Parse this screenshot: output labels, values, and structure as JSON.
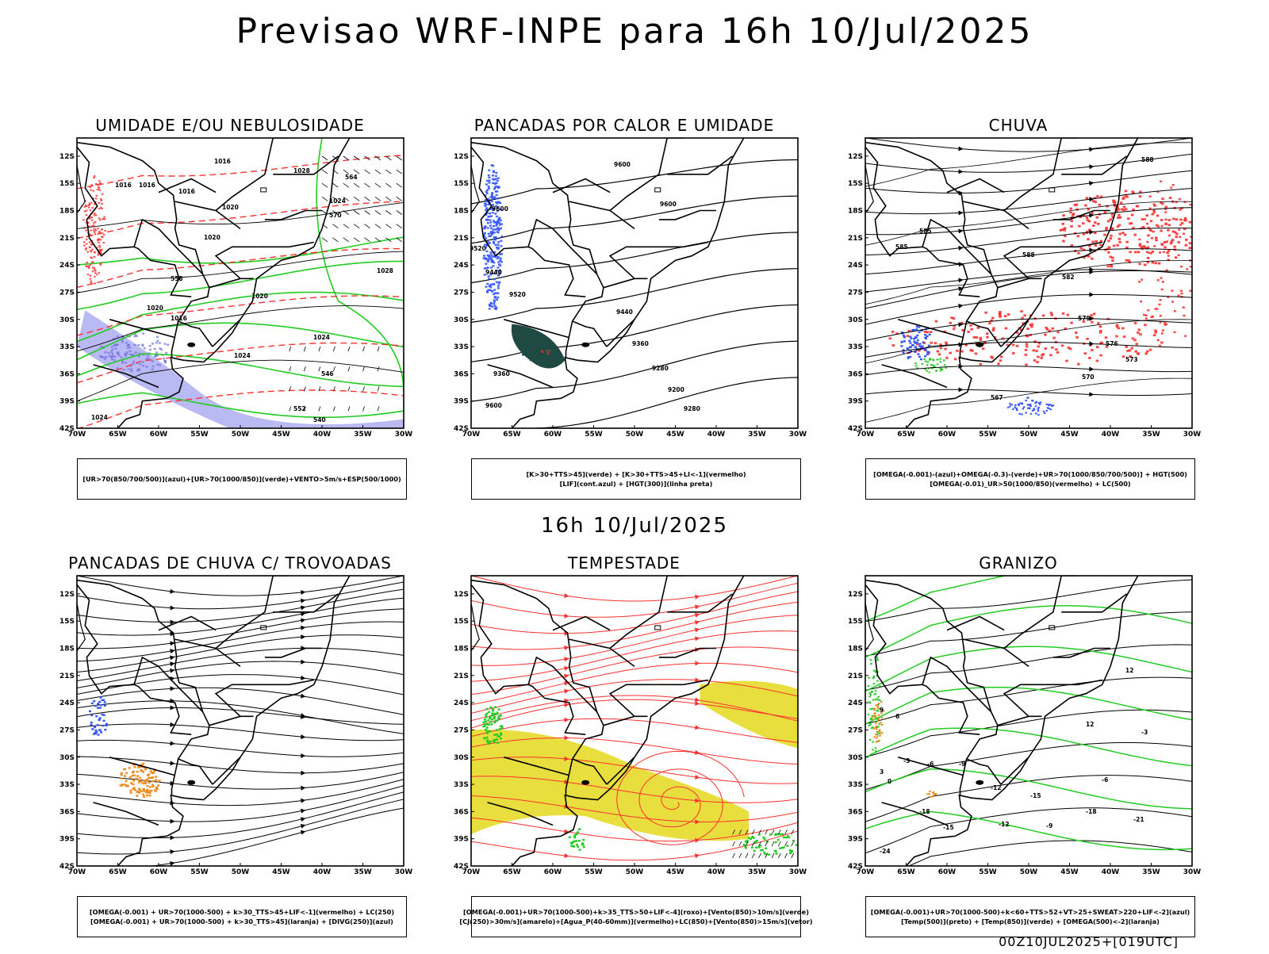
{
  "header": {
    "title": "Previsao WRF-INPE  para 16h 10/Jul/2025"
  },
  "mid_label": "16h 10/Jul/2025",
  "footer": "00Z10JUL2025+[019UTC]",
  "axes": {
    "lat_ticks": [
      "12S",
      "15S",
      "18S",
      "21S",
      "24S",
      "27S",
      "30S",
      "33S",
      "36S",
      "39S",
      "42S"
    ],
    "lon_ticks": [
      "70W",
      "65W",
      "60W",
      "55W",
      "50W",
      "45W",
      "40W",
      "35W",
      "30W"
    ]
  },
  "colors": {
    "red": "#ff3030",
    "green": "#22cc22",
    "blue": "#3355ff",
    "lavender": "#a8a8f0",
    "darkgreen": "#1f4a44",
    "yellow": "#e6dc2a",
    "orange": "#f08a20",
    "black": "#000000"
  },
  "panels": [
    {
      "title": "UMIDADE E/OU NEBULOSIDADE",
      "legend": [
        "[UR>70(850/700/500)](azul)+[UR>70(1000/850)](verde)+VENTO>5m/s+ESP(500/1000)"
      ],
      "contour_labels": [
        "1016",
        "1016",
        "1016",
        "1016",
        "1020",
        "1020",
        "1020",
        "1024",
        "1024",
        "1028",
        "1028",
        "1024",
        "1020",
        "1016",
        "1024",
        "570",
        "564",
        "558",
        "552",
        "546",
        "540"
      ]
    },
    {
      "title": "PANCADAS POR CALOR E UMIDADE",
      "legend": [
        "[K>30+TTS>45](verde) + [K>30+TTS>45+LI<-1](vermelho)",
        "[LIF](cont.azul) + [HGT(300)](linha preta)"
      ],
      "contour_labels": [
        "9600",
        "9600",
        "9600",
        "9520",
        "9520",
        "9440",
        "9440",
        "9360",
        "9280",
        "9200",
        "9280",
        "9360",
        "9600"
      ]
    },
    {
      "title": "CHUVA",
      "legend": [
        "[OMEGA(-0.001)-(azul)+OMEGA(-0.3)-(verde)+UR>70(1000/850/700/500)] + HGT(500)",
        "[OMEGA(-0.01)_UR>50(1000/850)(vermelho) + LC(500)"
      ],
      "contour_labels": [
        "588",
        "585",
        "585",
        "582",
        "579",
        "576",
        "573",
        "570",
        "567",
        "588"
      ]
    },
    {
      "title": "PANCADAS DE CHUVA C/ TROVOADAS",
      "legend": [
        "[OMEGA(-0.001) + UR>70(1000-500) + k>30_TTS>45+LIF<-1](vermelho) + LC(250)",
        "[OMEGA(-0.001) + UR>70(1000-500) + k>30_TTS>45](laranja) + [DIVG(250)](azul)"
      ],
      "contour_labels": []
    },
    {
      "title": "TEMPESTADE",
      "legend": [
        "[OMEGA(-0.001)+UR>70(1000-500)+k>35_TTS>50+LIF<-4](roxo)+[Vento(850)>10m/s](verde)",
        "[CJ(250)>30m/s](amarelo)+[Agua_P(40-60mm)](vermelho)+LC(850)+[Vento(850)>15m/s](vetor)"
      ],
      "contour_labels": []
    },
    {
      "title": "GRANIZO",
      "legend": [
        "[OMEGA(-0.001)+UR>70(1000-500)+k<60+TTS>52+VT>25+SWEAT>220+LIF<-2](azul)",
        "[Temp(500)](preto) + [Temp(850)](verde) + [OMEGA(500)<-2](laranja)"
      ],
      "contour_labels": [
        "12",
        "12",
        "9",
        "6",
        "3",
        "0",
        "-3",
        "-6",
        "-9",
        "-12",
        "-15",
        "-18",
        "-21",
        "-24",
        "-18",
        "-15",
        "-12",
        "-9",
        "-6",
        "-3"
      ]
    }
  ]
}
